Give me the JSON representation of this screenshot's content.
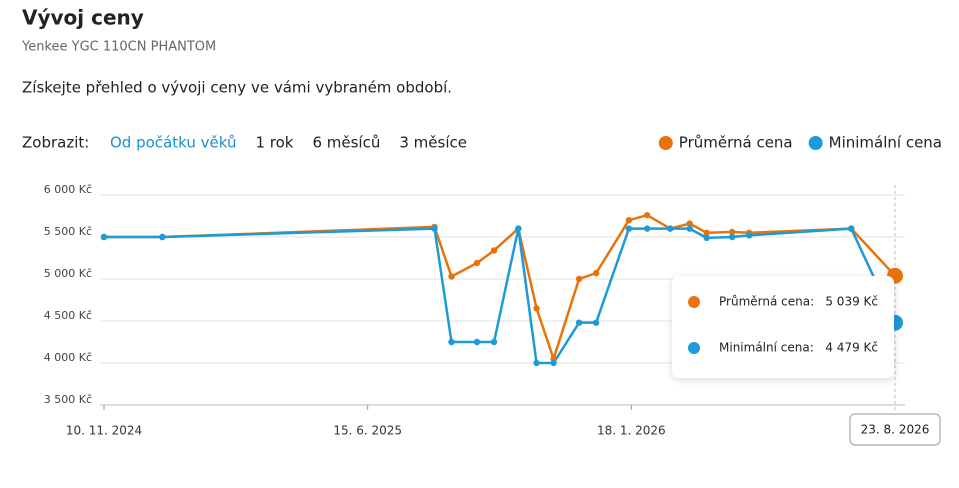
{
  "header": {
    "title": "Vývoj ceny",
    "subtitle": "Yenkee YGC 110CN PHANTOM",
    "description": "Získejte přehled o vývoji ceny ve vámi vybraném období."
  },
  "filters": {
    "label": "Zobrazit:",
    "options": [
      "Od počátku věků",
      "1 rok",
      "6 měsíců",
      "3 měsíce"
    ],
    "active": 0
  },
  "chart_data": {
    "type": "line",
    "x": [
      "2024-11-10",
      "2024-12-28",
      "2025-08-09",
      "2025-08-23",
      "2025-09-13",
      "2025-09-27",
      "2025-10-17",
      "2025-11-01",
      "2025-11-15",
      "2025-12-06",
      "2025-12-20",
      "2026-01-16",
      "2026-01-31",
      "2026-02-19",
      "2026-03-07",
      "2026-03-21",
      "2026-04-11",
      "2026-04-25",
      "2026-07-18",
      "2026-08-23"
    ],
    "series": [
      {
        "name": "Průměrná cena",
        "color": "#e8730c",
        "values": [
          5500,
          5500,
          5620,
          5030,
          5190,
          5340,
          5600,
          4650,
          4050,
          5000,
          5070,
          5700,
          5760,
          5600,
          5660,
          5550,
          5560,
          5550,
          5600,
          5039
        ]
      },
      {
        "name": "Minimální cena",
        "color": "#1b9bd7",
        "values": [
          5500,
          5500,
          5600,
          4250,
          4250,
          4250,
          5600,
          4000,
          4000,
          4480,
          4480,
          5600,
          5600,
          5600,
          5600,
          5490,
          5500,
          5520,
          5600,
          4479
        ]
      }
    ],
    "xlim": [
      "2024-11-10",
      "2026-08-23"
    ],
    "xticks": [
      {
        "value": "2024-11-10",
        "label": "10. 11. 2024"
      },
      {
        "value": "2025-06-15",
        "label": "15. 6. 2025"
      },
      {
        "value": "2026-01-18",
        "label": "18. 1. 2026"
      },
      {
        "value": "2026-08-23",
        "label": "23. 8. 2026"
      }
    ],
    "ylim": [
      3500,
      6000
    ],
    "yticks": [
      {
        "value": 3500,
        "label": "3 500 Kč"
      },
      {
        "value": 4000,
        "label": "4 000 Kč"
      },
      {
        "value": 4500,
        "label": "4 500 Kč"
      },
      {
        "value": 5000,
        "label": "5 000 Kč"
      },
      {
        "value": 5500,
        "label": "5 500 Kč"
      },
      {
        "value": 6000,
        "label": "6 000 Kč"
      }
    ],
    "grid": true,
    "legend": "top-right",
    "tooltip": {
      "rows": [
        {
          "label": "Průměrná cena:",
          "value": "5 039 Kč"
        },
        {
          "label": "Minimální cena:",
          "value": "4 479 Kč"
        }
      ]
    }
  }
}
